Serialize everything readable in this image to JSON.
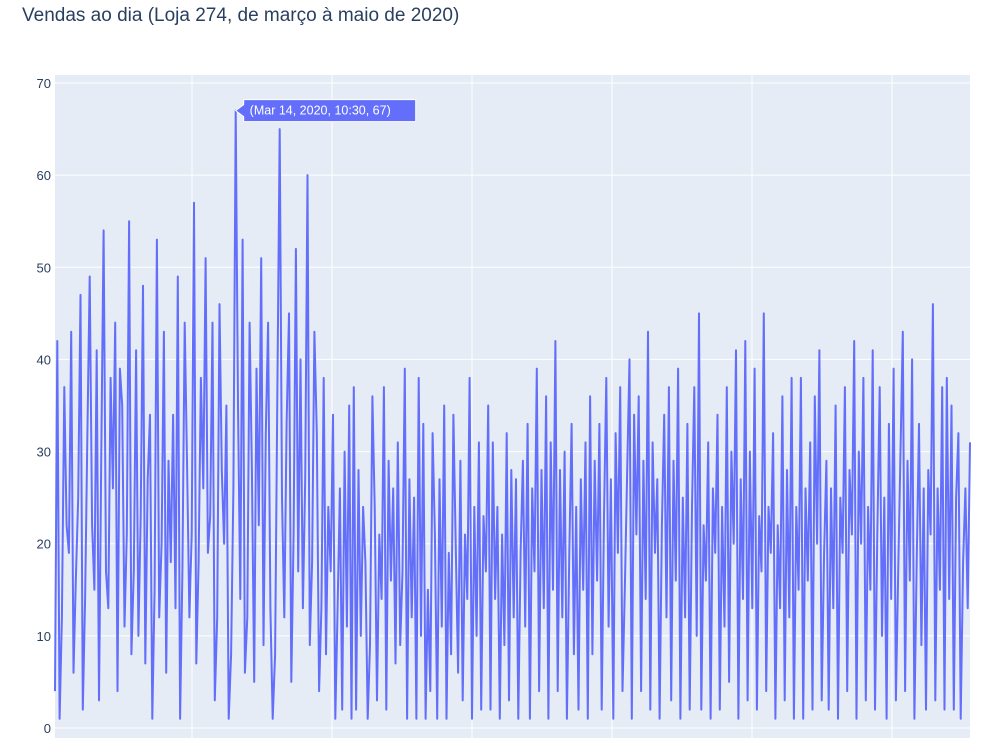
{
  "chart_data": {
    "type": "line",
    "title": "Vendas ao dia (Loja 274, de março à maio de 2020)",
    "xlabel": "",
    "ylabel": "",
    "ylim": [
      0,
      70
    ],
    "yticks": [
      0,
      10,
      20,
      30,
      40,
      50,
      60,
      70
    ],
    "grid": true,
    "legend": "none",
    "colors": {
      "line": "#636efa",
      "plot_bg": "#e5ecf6",
      "grid": "#ffffff",
      "text": "#2a3f5f"
    },
    "series": [
      {
        "name": "",
        "values": [
          4,
          42,
          1,
          12,
          37,
          22,
          19,
          43,
          6,
          16,
          25,
          47,
          2,
          14,
          32,
          49,
          22,
          15,
          41,
          3,
          30,
          54,
          17,
          13,
          38,
          26,
          44,
          4,
          39,
          35,
          11,
          21,
          55,
          8,
          17,
          41,
          10,
          23,
          48,
          7,
          27,
          34,
          1,
          15,
          53,
          12,
          20,
          43,
          6,
          29,
          18,
          34,
          13,
          49,
          1,
          17,
          44,
          29,
          12,
          21,
          57,
          7,
          18,
          38,
          26,
          51,
          19,
          23,
          44,
          3,
          12,
          46,
          28,
          20,
          35,
          1,
          8,
          26,
          67,
          35,
          14,
          53,
          6,
          12,
          44,
          28,
          5,
          39,
          22,
          51,
          9,
          32,
          44,
          13,
          1,
          8,
          37,
          65,
          25,
          12,
          33,
          45,
          5,
          21,
          52,
          17,
          40,
          13,
          27,
          60,
          9,
          18,
          43,
          32,
          4,
          13,
          38,
          8,
          24,
          17,
          34,
          1,
          13,
          26,
          2,
          30,
          11,
          35,
          1,
          37,
          2,
          28,
          10,
          24,
          18,
          1,
          9,
          36,
          24,
          3,
          21,
          14,
          37,
          2,
          29,
          16,
          26,
          7,
          31,
          9,
          17,
          39,
          1,
          27,
          12,
          25,
          1,
          38,
          10,
          33,
          1,
          15,
          4,
          32,
          21,
          1,
          27,
          11,
          35,
          1,
          19,
          8,
          34,
          20,
          6,
          29,
          3,
          21,
          14,
          38,
          1,
          24,
          10,
          31,
          2,
          23,
          17,
          35,
          2,
          31,
          14,
          24,
          1,
          21,
          9,
          32,
          3,
          28,
          12,
          27,
          1,
          19,
          29,
          11,
          33,
          1,
          26,
          17,
          39,
          4,
          28,
          13,
          36,
          1,
          31,
          15,
          42,
          4,
          28,
          12,
          30,
          1,
          19,
          33,
          8,
          24,
          2,
          27,
          15,
          31,
          1,
          36,
          8,
          29,
          16,
          33,
          2,
          23,
          38,
          11,
          27,
          1,
          32,
          19,
          37,
          4,
          15,
          28,
          40,
          1,
          34,
          21,
          36,
          4,
          29,
          14,
          43,
          2,
          31,
          19,
          27,
          1,
          22,
          34,
          12,
          37,
          3,
          29,
          16,
          39,
          1,
          25,
          12,
          33,
          2,
          24,
          37,
          10,
          45,
          2,
          22,
          16,
          31,
          1,
          26,
          19,
          34,
          2,
          24,
          11,
          37,
          5,
          30,
          20,
          41,
          1,
          27,
          14,
          42,
          3,
          30,
          13,
          39,
          2,
          23,
          17,
          45,
          4,
          24,
          19,
          32,
          1,
          22,
          13,
          36,
          3,
          28,
          12,
          38,
          1,
          24,
          15,
          38,
          1,
          26,
          16,
          31,
          2,
          36,
          20,
          41,
          3,
          19,
          29,
          2,
          26,
          13,
          35,
          1,
          25,
          19,
          37,
          4,
          28,
          21,
          42,
          1,
          30,
          20,
          38,
          3,
          24,
          15,
          41,
          2,
          21,
          37,
          10,
          25,
          1,
          33,
          14,
          39,
          3,
          17,
          30,
          43,
          4,
          29,
          16,
          40,
          1,
          18,
          33,
          9,
          26,
          2,
          28,
          21,
          46,
          3,
          26,
          15,
          37,
          2,
          38,
          14,
          35,
          2,
          25,
          32,
          1,
          18,
          26,
          13,
          31
        ]
      }
    ],
    "tooltip": {
      "text": "(Mar 14, 2020, 10:30, 67)",
      "point_index": 78
    }
  }
}
